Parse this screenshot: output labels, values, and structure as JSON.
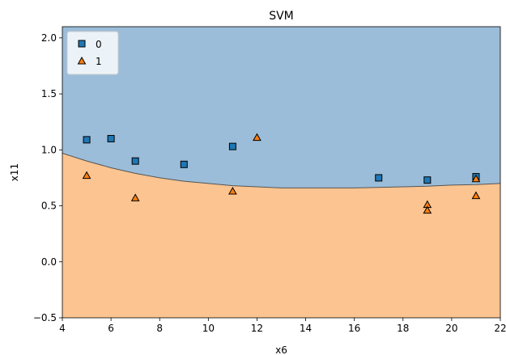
{
  "chart_data": {
    "type": "scatter",
    "title": "SVM",
    "xlabel": "x6",
    "ylabel": "x11",
    "xlim": [
      4,
      22
    ],
    "ylim": [
      -0.5,
      2.1
    ],
    "xticks": [
      4,
      6,
      8,
      10,
      12,
      14,
      16,
      18,
      20,
      22
    ],
    "yticks": [
      -0.5,
      0.0,
      0.5,
      1.0,
      1.5,
      2.0
    ],
    "xtick_labels": [
      "4",
      "6",
      "8",
      "10",
      "12",
      "14",
      "16",
      "18",
      "20",
      "22"
    ],
    "ytick_labels": [
      "−0.5",
      "0.0",
      "0.5",
      "1.0",
      "1.5",
      "2.0"
    ],
    "grid": false,
    "legend_position": "top-left",
    "regions": [
      {
        "class": "0",
        "color": "#9bbdd9",
        "side": "above-boundary"
      },
      {
        "class": "1",
        "color": "#fcc490",
        "side": "below-boundary"
      }
    ],
    "decision_boundary": {
      "x": [
        4,
        5,
        6,
        7,
        8,
        9,
        10,
        11,
        12,
        13,
        14,
        15,
        16,
        17,
        18,
        19,
        20,
        21,
        22
      ],
      "y": [
        0.97,
        0.9,
        0.84,
        0.79,
        0.75,
        0.72,
        0.7,
        0.68,
        0.67,
        0.66,
        0.66,
        0.66,
        0.66,
        0.665,
        0.67,
        0.675,
        0.685,
        0.69,
        0.7
      ],
      "color": "#555555"
    },
    "series": [
      {
        "name": "0",
        "marker": "square",
        "color": "#1f77b4",
        "points": [
          {
            "x": 5,
            "y": 1.09
          },
          {
            "x": 6,
            "y": 1.1
          },
          {
            "x": 7,
            "y": 0.9
          },
          {
            "x": 9,
            "y": 0.87
          },
          {
            "x": 11,
            "y": 1.03
          },
          {
            "x": 17,
            "y": 0.75
          },
          {
            "x": 19,
            "y": 0.73
          },
          {
            "x": 21,
            "y": 0.76
          }
        ]
      },
      {
        "name": "1",
        "marker": "triangle",
        "color": "#ff7f0e",
        "points": [
          {
            "x": 5,
            "y": 0.77
          },
          {
            "x": 7,
            "y": 0.57
          },
          {
            "x": 11,
            "y": 0.63
          },
          {
            "x": 12,
            "y": 1.11
          },
          {
            "x": 19,
            "y": 0.51
          },
          {
            "x": 19,
            "y": 0.46
          },
          {
            "x": 21,
            "y": 0.74
          },
          {
            "x": 21,
            "y": 0.59
          }
        ]
      }
    ]
  }
}
